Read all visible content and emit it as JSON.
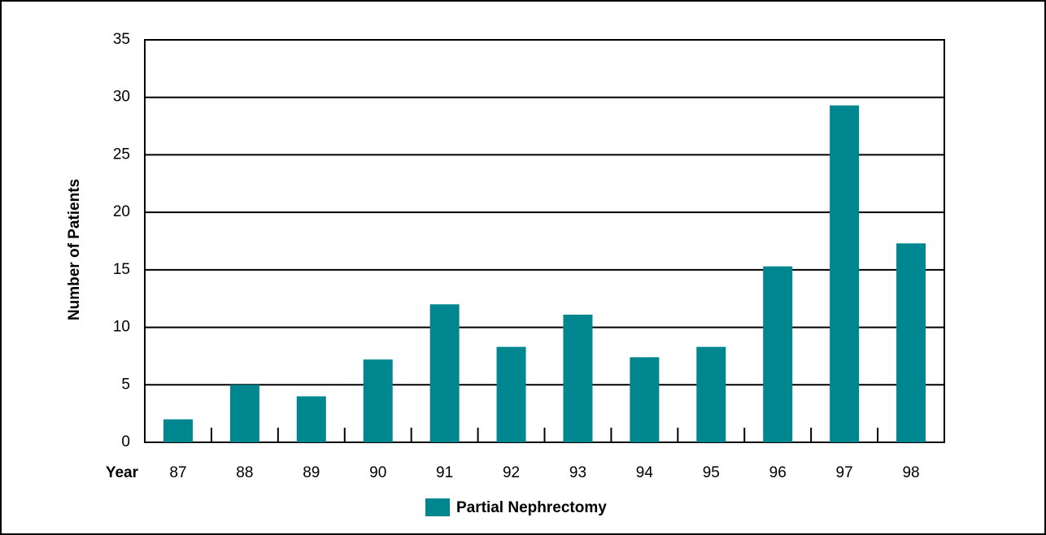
{
  "chart_data": {
    "type": "bar",
    "x_label": "Year",
    "y_label": "Number of Patients",
    "categories": [
      "87",
      "88",
      "89",
      "90",
      "91",
      "92",
      "93",
      "94",
      "95",
      "96",
      "97",
      "98"
    ],
    "series": [
      {
        "name": "Partial Nephrectomy",
        "color": "#00868f",
        "values": [
          2,
          5,
          4,
          7.2,
          12,
          8.3,
          11.1,
          7.4,
          8.3,
          15.3,
          29.3,
          17.3
        ]
      }
    ],
    "ylim": [
      0,
      35
    ],
    "yticks": [
      0,
      5,
      10,
      15,
      20,
      25,
      30,
      35
    ],
    "grid": true
  }
}
